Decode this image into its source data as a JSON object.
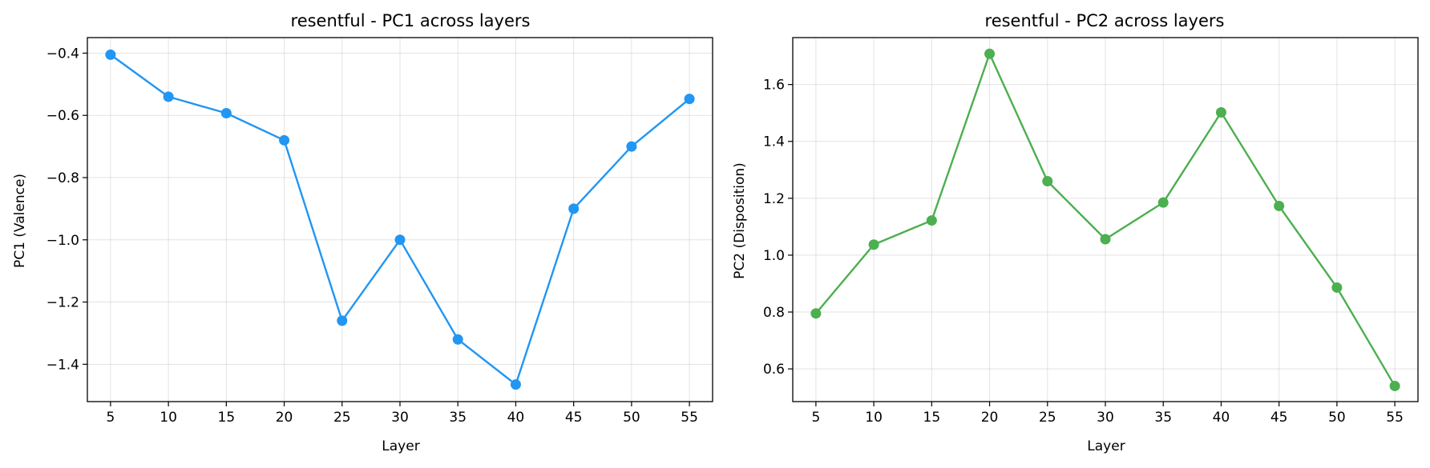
{
  "chart_data": [
    {
      "type": "line",
      "title": "resentful - PC1 across layers",
      "xlabel": "Layer",
      "ylabel": "PC1 (Valence)",
      "x": [
        5,
        10,
        15,
        20,
        25,
        30,
        35,
        40,
        45,
        50,
        55
      ],
      "y": [
        -0.405,
        -0.54,
        -0.593,
        -0.68,
        -1.26,
        -1.0,
        -1.32,
        -1.465,
        -0.9,
        -0.7,
        -0.547
      ],
      "xticks": [
        "5",
        "10",
        "15",
        "20",
        "25",
        "30",
        "35",
        "40",
        "45",
        "50",
        "55"
      ],
      "yticks": [
        "-0.4",
        "-0.6",
        "-0.8",
        "-1.0",
        "-1.2",
        "-1.4"
      ],
      "ytick_values": [
        -0.4,
        -0.6,
        -0.8,
        -1.0,
        -1.2,
        -1.4
      ],
      "ylim": [
        -1.52,
        -0.35
      ],
      "xlim": [
        3,
        57
      ],
      "color": "#2196F3",
      "grid": true,
      "marker": "circle"
    },
    {
      "type": "line",
      "title": "resentful - PC2 across layers",
      "xlabel": "Layer",
      "ylabel": "PC2 (Disposition)",
      "x": [
        5,
        10,
        15,
        20,
        25,
        30,
        35,
        40,
        45,
        50,
        55
      ],
      "y": [
        0.795,
        1.037,
        1.122,
        1.708,
        1.26,
        1.056,
        1.185,
        1.502,
        1.173,
        0.886,
        0.54
      ],
      "xticks": [
        "5",
        "10",
        "15",
        "20",
        "25",
        "30",
        "35",
        "40",
        "45",
        "50",
        "55"
      ],
      "yticks": [
        "0.6",
        "0.8",
        "1.0",
        "1.2",
        "1.4",
        "1.6"
      ],
      "ytick_values": [
        0.6,
        0.8,
        1.0,
        1.2,
        1.4,
        1.6
      ],
      "ylim": [
        0.485,
        1.765
      ],
      "xlim": [
        3,
        57
      ],
      "color": "#4CAF50",
      "grid": true,
      "marker": "circle"
    }
  ]
}
